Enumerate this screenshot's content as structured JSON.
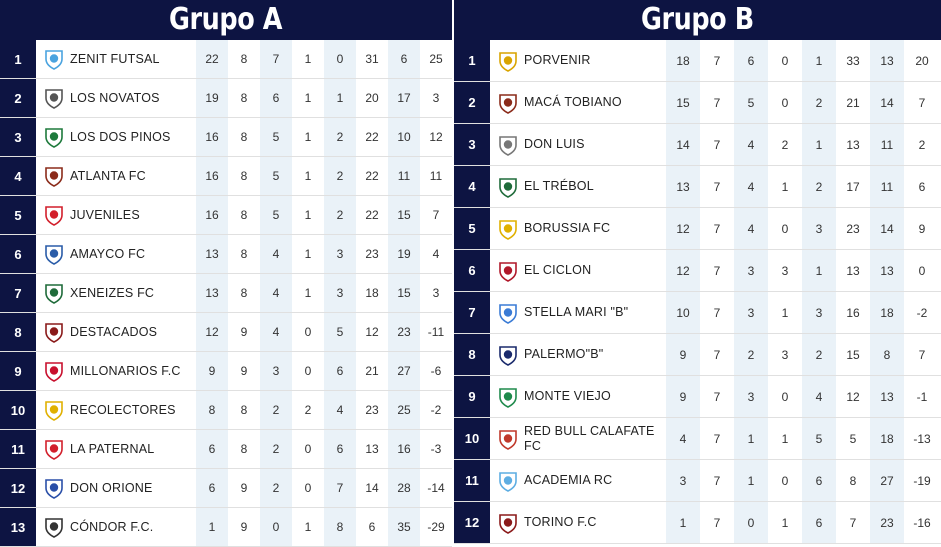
{
  "groups": [
    {
      "id": "A",
      "title": "Grupo A",
      "rows": [
        {
          "pos": "1",
          "team": "ZENIT FUTSAL",
          "stats": [
            "22",
            "8",
            "7",
            "1",
            "0",
            "31",
            "6",
            "25"
          ],
          "logo_color": "#4aa3df"
        },
        {
          "pos": "2",
          "team": "LOS NOVATOS",
          "stats": [
            "19",
            "8",
            "6",
            "1",
            "1",
            "20",
            "17",
            "3"
          ],
          "logo_color": "#555555"
        },
        {
          "pos": "3",
          "team": "LOS DOS PINOS",
          "stats": [
            "16",
            "8",
            "5",
            "1",
            "2",
            "22",
            "10",
            "12"
          ],
          "logo_color": "#1e7a3c"
        },
        {
          "pos": "4",
          "team": "ATLANTA FC",
          "stats": [
            "16",
            "8",
            "5",
            "1",
            "2",
            "22",
            "11",
            "11"
          ],
          "logo_color": "#8b2b1a"
        },
        {
          "pos": "5",
          "team": "JUVENILES",
          "stats": [
            "16",
            "8",
            "5",
            "1",
            "2",
            "22",
            "15",
            "7"
          ],
          "logo_color": "#d21f2b"
        },
        {
          "pos": "6",
          "team": "AMAYCO FC",
          "stats": [
            "13",
            "8",
            "4",
            "1",
            "3",
            "23",
            "19",
            "4"
          ],
          "logo_color": "#2a5ca8"
        },
        {
          "pos": "7",
          "team": "XENEIZES FC",
          "stats": [
            "13",
            "8",
            "4",
            "1",
            "3",
            "18",
            "15",
            "3"
          ],
          "logo_color": "#1f6b3a"
        },
        {
          "pos": "8",
          "team": "DESTACADOS",
          "stats": [
            "12",
            "9",
            "4",
            "0",
            "5",
            "12",
            "23",
            "-11"
          ],
          "logo_color": "#8a1a1a"
        },
        {
          "pos": "9",
          "team": "MILLONARIOS F.C",
          "stats": [
            "9",
            "9",
            "3",
            "0",
            "6",
            "21",
            "27",
            "-6"
          ],
          "logo_color": "#c8102e"
        },
        {
          "pos": "10",
          "team": "RECOLECTORES",
          "stats": [
            "8",
            "8",
            "2",
            "2",
            "4",
            "23",
            "25",
            "-2"
          ],
          "logo_color": "#e0b000"
        },
        {
          "pos": "11",
          "team": "LA PATERNAL",
          "stats": [
            "6",
            "8",
            "2",
            "0",
            "6",
            "13",
            "16",
            "-3"
          ],
          "logo_color": "#d21f2b"
        },
        {
          "pos": "12",
          "team": "DON ORIONE",
          "stats": [
            "6",
            "9",
            "2",
            "0",
            "7",
            "14",
            "28",
            "-14"
          ],
          "logo_color": "#2a4fa8"
        },
        {
          "pos": "13",
          "team": "CÓNDOR F.C.",
          "stats": [
            "1",
            "9",
            "0",
            "1",
            "8",
            "6",
            "35",
            "-29"
          ],
          "logo_color": "#333333"
        }
      ]
    },
    {
      "id": "B",
      "title": "Grupo B",
      "rows": [
        {
          "pos": "1",
          "team": "PORVENIR",
          "stats": [
            "18",
            "7",
            "6",
            "0",
            "1",
            "33",
            "13",
            "20"
          ],
          "logo_color": "#d9a400"
        },
        {
          "pos": "2",
          "team": "MACÁ TOBIANO",
          "stats": [
            "15",
            "7",
            "5",
            "0",
            "2",
            "21",
            "14",
            "7"
          ],
          "logo_color": "#8b2b1a"
        },
        {
          "pos": "3",
          "team": "DON LUIS",
          "stats": [
            "14",
            "7",
            "4",
            "2",
            "1",
            "13",
            "11",
            "2"
          ],
          "logo_color": "#777777"
        },
        {
          "pos": "4",
          "team": "EL TRÉBOL",
          "stats": [
            "13",
            "7",
            "4",
            "1",
            "2",
            "17",
            "11",
            "6"
          ],
          "logo_color": "#1f6b3a"
        },
        {
          "pos": "5",
          "team": "BORUSSIA FC",
          "stats": [
            "12",
            "7",
            "4",
            "0",
            "3",
            "23",
            "14",
            "9"
          ],
          "logo_color": "#e0b000"
        },
        {
          "pos": "6",
          "team": "EL CICLON",
          "stats": [
            "12",
            "7",
            "3",
            "3",
            "1",
            "13",
            "13",
            "0"
          ],
          "logo_color": "#b0182a"
        },
        {
          "pos": "7",
          "team": "STELLA MARI \"B\"",
          "stats": [
            "10",
            "7",
            "3",
            "1",
            "3",
            "16",
            "18",
            "-2"
          ],
          "logo_color": "#3a7bd5"
        },
        {
          "pos": "8",
          "team": "PALERMO\"B\"",
          "stats": [
            "9",
            "7",
            "2",
            "3",
            "2",
            "15",
            "8",
            "7"
          ],
          "logo_color": "#1a2a6c"
        },
        {
          "pos": "9",
          "team": "MONTE VIEJO",
          "stats": [
            "9",
            "7",
            "3",
            "0",
            "4",
            "12",
            "13",
            "-1"
          ],
          "logo_color": "#1f8a4c"
        },
        {
          "pos": "10",
          "team": "RED BULL CALAFATE FC",
          "stats": [
            "4",
            "7",
            "1",
            "1",
            "5",
            "5",
            "18",
            "-13"
          ],
          "logo_color": "#c0392b"
        },
        {
          "pos": "11",
          "team": "ACADEMIA RC",
          "stats": [
            "3",
            "7",
            "1",
            "0",
            "6",
            "8",
            "27",
            "-19"
          ],
          "logo_color": "#5dade2"
        },
        {
          "pos": "12",
          "team": "TORINO F.C",
          "stats": [
            "1",
            "7",
            "0",
            "1",
            "6",
            "7",
            "23",
            "-16"
          ],
          "logo_color": "#8b1a1a"
        }
      ]
    }
  ]
}
